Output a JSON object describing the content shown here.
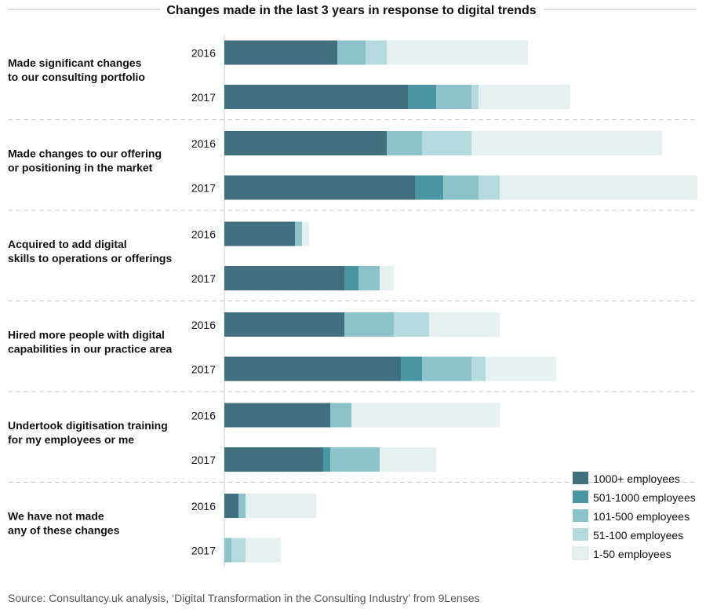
{
  "chart_data": {
    "type": "bar",
    "orientation": "horizontal",
    "stacked": true,
    "title": "Changes made in the last 3 years in response to digital trends",
    "source": "Source: Consultancy.uk analysis, ‘Digital Transformation in the Consulting Industry’ from 9Lenses",
    "categories": [
      {
        "lines": [
          "Made significant changes",
          "to our consulting portfolio"
        ]
      },
      {
        "lines": [
          "Made changes to our offering",
          "or positioning in the market"
        ]
      },
      {
        "lines": [
          "Acquired to add digital",
          "skills to operations or offerings"
        ]
      },
      {
        "lines": [
          "Hired more people with digital",
          "capabilities in our practice area"
        ]
      },
      {
        "lines": [
          "Undertook digitisation training",
          "for my employees or me"
        ]
      },
      {
        "lines": [
          "We have not made",
          "any of these changes"
        ]
      }
    ],
    "years": [
      "2016",
      "2017"
    ],
    "series": [
      {
        "name": "1000+ employees",
        "color": "#426f80",
        "values": [
          [
            16,
            26
          ],
          [
            23,
            27
          ],
          [
            10,
            17
          ],
          [
            17,
            25
          ],
          [
            15,
            14
          ],
          [
            2,
            0
          ]
        ]
      },
      {
        "name": "501-1000 employees",
        "color": "#4a95a4",
        "values": [
          [
            0,
            4
          ],
          [
            0,
            4
          ],
          [
            0,
            2
          ],
          [
            0,
            3
          ],
          [
            0,
            1
          ],
          [
            0,
            0
          ]
        ]
      },
      {
        "name": "101-500 employees",
        "color": "#8cc2ca",
        "values": [
          [
            4,
            5
          ],
          [
            5,
            5
          ],
          [
            1,
            3
          ],
          [
            7,
            7
          ],
          [
            3,
            7
          ],
          [
            1,
            1
          ]
        ]
      },
      {
        "name": "51-100 employees",
        "color": "#b5dade",
        "values": [
          [
            3,
            1
          ],
          [
            7,
            3
          ],
          [
            0,
            0
          ],
          [
            5,
            2
          ],
          [
            0,
            0
          ],
          [
            0,
            2
          ]
        ]
      },
      {
        "name": "1-50 employees",
        "color": "#e7f0f1",
        "values": [
          [
            20,
            13
          ],
          [
            27,
            28
          ],
          [
            1,
            2
          ],
          [
            10,
            10
          ],
          [
            21,
            8
          ],
          [
            10,
            5
          ]
        ]
      }
    ],
    "xlim": [
      0,
      67
    ],
    "grid": false,
    "legend_position": "bottom-right"
  }
}
